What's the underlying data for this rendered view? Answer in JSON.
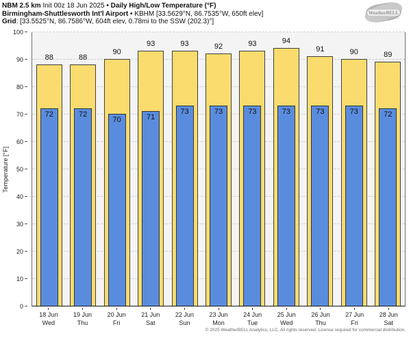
{
  "header": {
    "line1": {
      "bold1": "NBM 2.5 km",
      "normal1": " Init 00z 18 Jun 2025 ",
      "sep": "•",
      "bold2": " Daily High/Low Temperature (°F)"
    },
    "line2": {
      "bold": "Birmingham-Shuttlesworth Int'l Airport",
      "sep": " • ",
      "normal": "KBHM [33.5629°N, 86.7535°W, 650ft elev]"
    },
    "line3": {
      "bold": "Grid",
      "normal": ": [33.5525°N, 86.7586°W, 604ft elev, 0.78mi to the SSW (202.3)°]"
    }
  },
  "logo": {
    "name": "WeatherBELL",
    "sub": "Analytics LLC"
  },
  "chart_data": {
    "type": "bar",
    "title": "NBM 2.5 km Init 00z 18 Jun 2025 • Daily High/Low Temperature (°F)",
    "ylabel": "Temperature [°F]",
    "xlabel": "",
    "ylim": [
      0,
      100
    ],
    "yticks": [
      0,
      10,
      20,
      30,
      40,
      50,
      60,
      70,
      80,
      90,
      100
    ],
    "grid": true,
    "legend": "none",
    "categories": [
      {
        "date": "18 Jun",
        "day": "Wed"
      },
      {
        "date": "19 Jun",
        "day": "Thu"
      },
      {
        "date": "20 Jun",
        "day": "Fri"
      },
      {
        "date": "21 Jun",
        "day": "Sat"
      },
      {
        "date": "22 Jun",
        "day": "Sun"
      },
      {
        "date": "23 Jun",
        "day": "Mon"
      },
      {
        "date": "24 Jun",
        "day": "Tue"
      },
      {
        "date": "25 Jun",
        "day": "Wed"
      },
      {
        "date": "26 Jun",
        "day": "Thu"
      },
      {
        "date": "27 Jun",
        "day": "Fri"
      },
      {
        "date": "28 Jun",
        "day": "Sat"
      }
    ],
    "series": [
      {
        "name": "Daily High",
        "color": "#fadc6e",
        "values": [
          88,
          88,
          90,
          93,
          93,
          92,
          93,
          94,
          91,
          90,
          89
        ]
      },
      {
        "name": "Daily Low",
        "color": "#5a8cde",
        "values": [
          72,
          72,
          70,
          71,
          73,
          73,
          73,
          73,
          73,
          73,
          72
        ]
      }
    ]
  },
  "footer": {
    "copyright": "© 2025 WeatherBELL Analytics, LLC. All rights reserved. License required for commercial distribution."
  }
}
